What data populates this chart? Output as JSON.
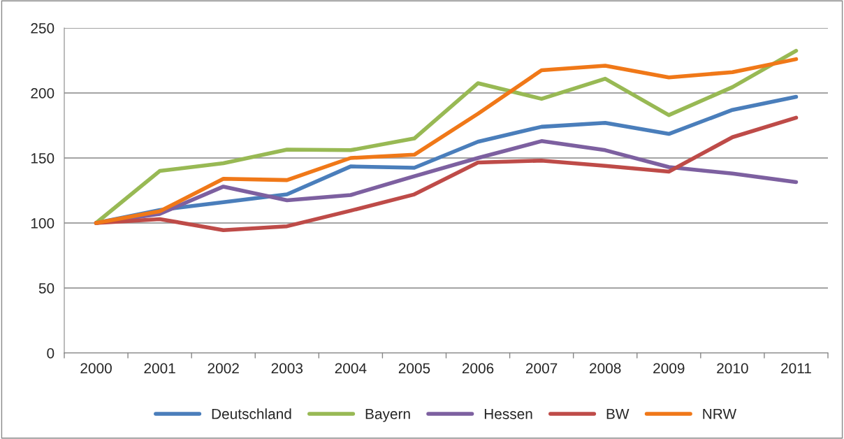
{
  "chart_data": {
    "type": "line",
    "categories": [
      "2000",
      "2001",
      "2002",
      "2003",
      "2004",
      "2005",
      "2006",
      "2007",
      "2008",
      "2009",
      "2010",
      "2011"
    ],
    "series": [
      {
        "name": "Deutschland",
        "color": "#4a7ebb",
        "values": [
          100,
          110,
          116,
          122,
          143.5,
          142.5,
          162.5,
          174,
          177,
          168.5,
          187,
          197
        ]
      },
      {
        "name": "Bayern",
        "color": "#98b954",
        "values": [
          100,
          140,
          146,
          156.5,
          156,
          165,
          207.5,
          195.5,
          211,
          183,
          204.5,
          232.5
        ]
      },
      {
        "name": "Hessen",
        "color": "#7d60a0",
        "values": [
          100,
          107,
          128,
          117.5,
          121.5,
          136,
          150,
          163,
          156,
          143,
          138,
          131.5
        ]
      },
      {
        "name": "BW",
        "color": "#be4b48",
        "values": [
          100,
          103,
          94.5,
          97.5,
          109.5,
          122,
          146.5,
          148,
          144,
          139.5,
          166,
          181
        ]
      },
      {
        "name": "NRW",
        "color": "#f07818",
        "values": [
          100,
          109,
          134,
          133,
          150,
          152.5,
          184,
          217.5,
          221,
          212,
          216,
          226
        ]
      }
    ],
    "ylim": [
      0,
      250
    ],
    "yticks": [
      0,
      50,
      100,
      150,
      200,
      250
    ],
    "grid": "y",
    "legend": "bottom",
    "marker": "none",
    "line_style": "solid"
  }
}
